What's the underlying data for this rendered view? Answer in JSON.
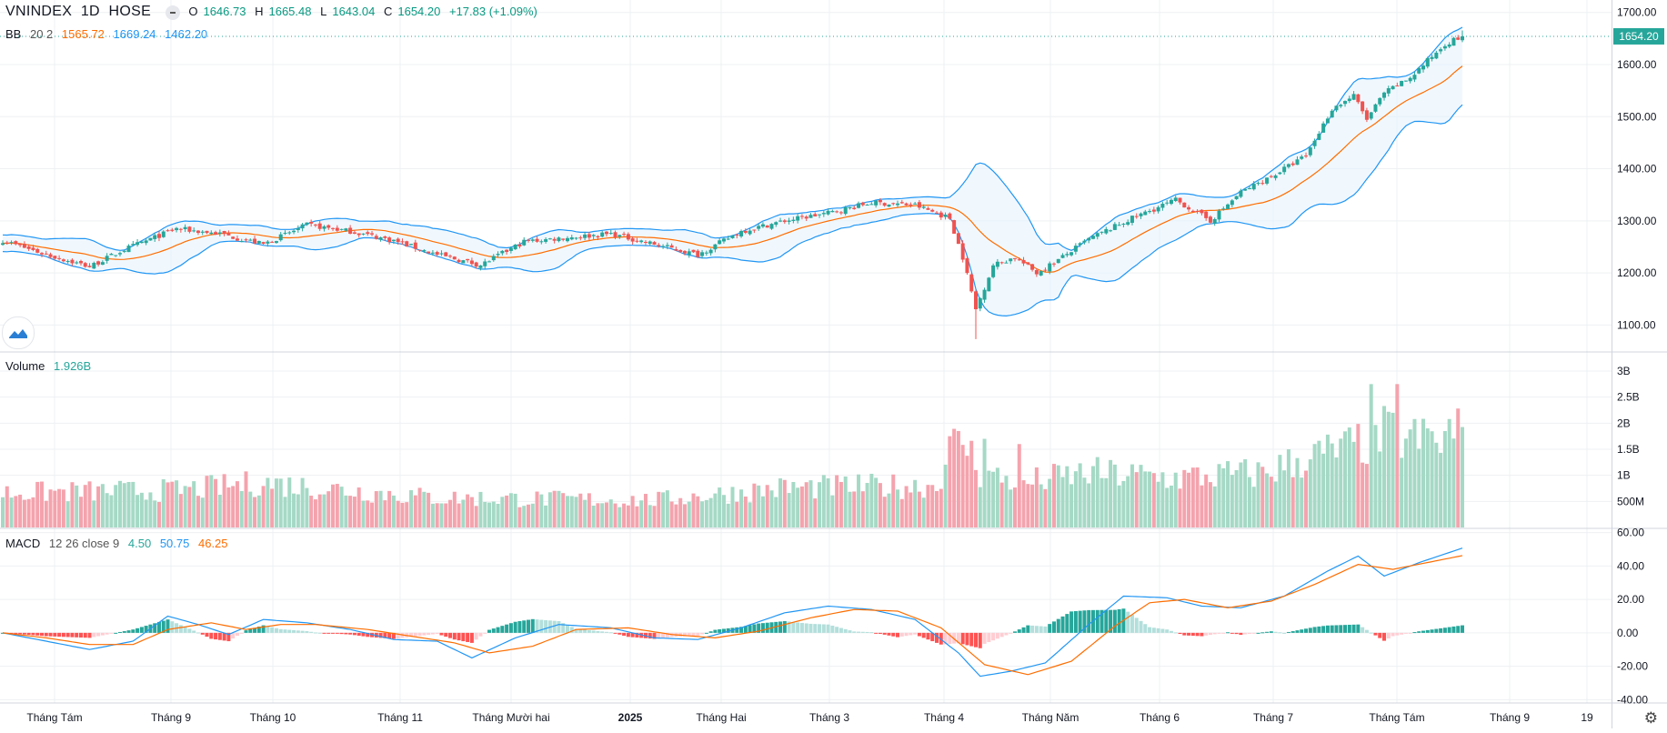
{
  "header": {
    "symbol": "VNINDEX",
    "interval": "1D",
    "exchange": "HOSE",
    "open_label": "O",
    "open": "1646.73",
    "high_label": "H",
    "high": "1665.48",
    "low_label": "L",
    "low": "1643.04",
    "close_label": "C",
    "close": "1654.20",
    "change": "+17.83 (+1.09%)"
  },
  "bb_legend": {
    "name": "BB",
    "params": "20 2",
    "basis": "1565.72",
    "upper": "1669.24",
    "lower": "1462.20"
  },
  "volume_legend": {
    "name": "Volume",
    "value": "1.926B"
  },
  "macd_legend": {
    "name": "MACD",
    "params": "12 26 close 9",
    "hist": "4.50",
    "macd": "50.75",
    "signal": "46.25"
  },
  "price_marker": "1654.20",
  "colors": {
    "up": "#26a69a",
    "down": "#ef5350",
    "vol_up": "#a5d9c6",
    "vol_down": "#f4a3ad",
    "bb_band": "#2196f3",
    "bb_basis": "#ff6d00",
    "macd_line": "#2196f3",
    "signal_line": "#ff6d00"
  },
  "chart_data": [
    {
      "type": "candlestick",
      "title": "VNINDEX 1D HOSE",
      "y_ticks": [
        "1700.00",
        "1600.00",
        "1500.00",
        "1400.00",
        "1300.00",
        "1200.00",
        "1100.00"
      ],
      "ylim": [
        1050,
        1710
      ],
      "x_ticks": [
        "Tháng Tám",
        "Tháng 9",
        "Tháng 10",
        "Tháng 11",
        "Tháng Mười hai",
        "2025",
        "Tháng Hai",
        "Tháng 3",
        "Tháng 4",
        "Tháng Năm",
        "Tháng 6",
        "Tháng 7",
        "Tháng Tám",
        "Tháng 9",
        "19"
      ],
      "close_anchors": [
        [
          0,
          1262
        ],
        [
          10,
          1235
        ],
        [
          20,
          1212
        ],
        [
          28,
          1245
        ],
        [
          40,
          1285
        ],
        [
          50,
          1275
        ],
        [
          60,
          1255
        ],
        [
          70,
          1292
        ],
        [
          80,
          1280
        ],
        [
          90,
          1262
        ],
        [
          100,
          1235
        ],
        [
          110,
          1215
        ],
        [
          120,
          1260
        ],
        [
          130,
          1268
        ],
        [
          140,
          1275
        ],
        [
          150,
          1255
        ],
        [
          160,
          1235
        ],
        [
          170,
          1280
        ],
        [
          180,
          1300
        ],
        [
          190,
          1315
        ],
        [
          200,
          1335
        ],
        [
          210,
          1330
        ],
        [
          218,
          1305
        ],
        [
          221,
          1230
        ],
        [
          224,
          1130
        ],
        [
          228,
          1215
        ],
        [
          233,
          1230
        ],
        [
          238,
          1200
        ],
        [
          243,
          1225
        ],
        [
          250,
          1265
        ],
        [
          260,
          1305
        ],
        [
          270,
          1340
        ],
        [
          278,
          1300
        ],
        [
          285,
          1355
        ],
        [
          292,
          1385
        ],
        [
          300,
          1425
        ],
        [
          306,
          1515
        ],
        [
          311,
          1540
        ],
        [
          314,
          1495
        ],
        [
          318,
          1545
        ],
        [
          324,
          1575
        ],
        [
          332,
          1640
        ],
        [
          336,
          1654
        ]
      ],
      "n_sessions": 337,
      "bollinger": {
        "period": 20,
        "mult": 2,
        "last_basis": 1565.72,
        "last_upper": 1669.24,
        "last_lower": 1462.2
      },
      "notable_lows": [
        [
          224,
          1073
        ]
      ],
      "last_candle": {
        "open": 1646.73,
        "high": 1665.48,
        "low": 1643.04,
        "close": 1654.2
      }
    },
    {
      "type": "bar",
      "title": "Volume",
      "y_ticks": [
        "3B",
        "2.5B",
        "2B",
        "1.5B",
        "1B",
        "500M"
      ],
      "ylim": [
        0,
        3.0
      ],
      "unit": "B",
      "level_anchors": [
        [
          0,
          0.7
        ],
        [
          40,
          0.75
        ],
        [
          60,
          0.9
        ],
        [
          100,
          0.6
        ],
        [
          150,
          0.55
        ],
        [
          180,
          0.8
        ],
        [
          215,
          0.85
        ],
        [
          218,
          1.6
        ],
        [
          221,
          1.8
        ],
        [
          225,
          1.1
        ],
        [
          235,
          0.9
        ],
        [
          250,
          1.1
        ],
        [
          270,
          1.0
        ],
        [
          290,
          1.1
        ],
        [
          300,
          1.4
        ],
        [
          310,
          1.6
        ],
        [
          318,
          1.9
        ],
        [
          330,
          1.7
        ],
        [
          336,
          1.926
        ]
      ],
      "spikes": [
        [
          218,
          1.75
        ],
        [
          220,
          1.85
        ],
        [
          226,
          1.7
        ],
        [
          234,
          1.6
        ],
        [
          315,
          2.75
        ],
        [
          321,
          2.75
        ],
        [
          328,
          1.9
        ],
        [
          333,
          2.08
        ]
      ]
    },
    {
      "type": "line",
      "title": "MACD 12 26 close 9",
      "y_ticks": [
        "60.00",
        "40.00",
        "20.00",
        "0.00",
        "-20.00",
        "-40.00"
      ],
      "ylim": [
        -42,
        62
      ],
      "macd_anchors": [
        [
          0,
          0
        ],
        [
          10,
          -5
        ],
        [
          20,
          -10
        ],
        [
          30,
          -5
        ],
        [
          38,
          10
        ],
        [
          45,
          5
        ],
        [
          52,
          -1
        ],
        [
          60,
          8
        ],
        [
          70,
          6
        ],
        [
          80,
          2
        ],
        [
          90,
          -4
        ],
        [
          100,
          -5
        ],
        [
          108,
          -15
        ],
        [
          118,
          -3
        ],
        [
          128,
          5
        ],
        [
          140,
          3
        ],
        [
          150,
          -3
        ],
        [
          160,
          -4
        ],
        [
          170,
          3
        ],
        [
          180,
          12
        ],
        [
          190,
          16
        ],
        [
          200,
          14
        ],
        [
          210,
          8
        ],
        [
          220,
          -12
        ],
        [
          225,
          -26
        ],
        [
          232,
          -23
        ],
        [
          240,
          -18
        ],
        [
          250,
          5
        ],
        [
          258,
          22
        ],
        [
          268,
          21
        ],
        [
          276,
          16
        ],
        [
          285,
          15
        ],
        [
          295,
          22
        ],
        [
          305,
          37
        ],
        [
          312,
          46
        ],
        [
          318,
          34
        ],
        [
          326,
          42
        ],
        [
          336,
          50.75
        ]
      ],
      "signal_anchors": [
        [
          0,
          0
        ],
        [
          10,
          -3
        ],
        [
          20,
          -7
        ],
        [
          30,
          -7
        ],
        [
          38,
          2
        ],
        [
          48,
          6
        ],
        [
          56,
          2
        ],
        [
          64,
          5
        ],
        [
          72,
          5
        ],
        [
          84,
          2
        ],
        [
          94,
          -2
        ],
        [
          104,
          -6
        ],
        [
          112,
          -12
        ],
        [
          122,
          -8
        ],
        [
          132,
          2
        ],
        [
          144,
          3
        ],
        [
          154,
          -1
        ],
        [
          164,
          -3
        ],
        [
          174,
          1
        ],
        [
          186,
          9
        ],
        [
          196,
          14
        ],
        [
          206,
          13
        ],
        [
          216,
          3
        ],
        [
          226,
          -19
        ],
        [
          236,
          -25
        ],
        [
          246,
          -17
        ],
        [
          256,
          4
        ],
        [
          264,
          18
        ],
        [
          272,
          20
        ],
        [
          282,
          15
        ],
        [
          292,
          19
        ],
        [
          302,
          29
        ],
        [
          312,
          41
        ],
        [
          320,
          38
        ],
        [
          336,
          46.25
        ]
      ],
      "last_hist": 4.5
    }
  ]
}
